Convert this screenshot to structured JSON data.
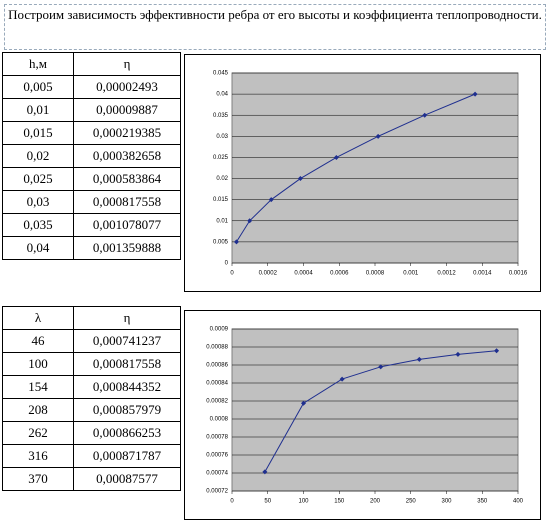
{
  "header": {
    "title": "Построим зависимость эффективности ребра от его высоты и коэффициента теплопроводности."
  },
  "tables": [
    {
      "columns": [
        "h,м",
        "η"
      ],
      "rows": [
        [
          "0,005",
          "0,00002493"
        ],
        [
          "0,01",
          "0,00009887"
        ],
        [
          "0,015",
          "0,000219385"
        ],
        [
          "0,02",
          "0,000382658"
        ],
        [
          "0,025",
          "0,000583864"
        ],
        [
          "0,03",
          "0,000817558"
        ],
        [
          "0,035",
          "0,001078077"
        ],
        [
          "0,04",
          "0,001359888"
        ]
      ]
    },
    {
      "columns": [
        "λ",
        "η"
      ],
      "rows": [
        [
          "46",
          "0,000741237"
        ],
        [
          "100",
          "0,000817558"
        ],
        [
          "154",
          "0,000844352"
        ],
        [
          "208",
          "0,000857979"
        ],
        [
          "262",
          "0,000866253"
        ],
        [
          "316",
          "0,000871787"
        ],
        [
          "370",
          "0,00087577"
        ]
      ]
    }
  ],
  "chart_data": [
    {
      "type": "line",
      "color": "#1f2f8f",
      "x": [
        2.493e-05,
        9.887e-05,
        0.000219385,
        0.000382658,
        0.000583864,
        0.000817558,
        0.001078077,
        0.001359888
      ],
      "y": [
        0.005,
        0.01,
        0.015,
        0.02,
        0.025,
        0.03,
        0.035,
        0.04
      ],
      "xlim": [
        0,
        0.0016
      ],
      "xticks": [
        0,
        0.0002,
        0.0004,
        0.0006,
        0.0008,
        0.001,
        0.0012,
        0.0014,
        0.0016
      ],
      "ylim": [
        0,
        0.045
      ],
      "yticks": [
        0,
        0.005,
        0.01,
        0.015,
        0.02,
        0.025,
        0.03,
        0.035,
        0.04,
        0.045
      ],
      "grid": true
    },
    {
      "type": "line",
      "color": "#1f2f8f",
      "x": [
        46,
        100,
        154,
        208,
        262,
        316,
        370
      ],
      "y": [
        0.000741237,
        0.000817558,
        0.000844352,
        0.000857979,
        0.000866253,
        0.000871787,
        0.00087577
      ],
      "xlim": [
        0,
        400
      ],
      "xticks": [
        0,
        50,
        100,
        150,
        200,
        250,
        300,
        350,
        400
      ],
      "ylim": [
        0.00072,
        0.0009
      ],
      "yticks": [
        0.00072,
        0.00074,
        0.00076,
        0.00078,
        0.0008,
        0.00082,
        0.00084,
        0.00086,
        0.00088,
        0.0009
      ],
      "grid": true
    }
  ]
}
